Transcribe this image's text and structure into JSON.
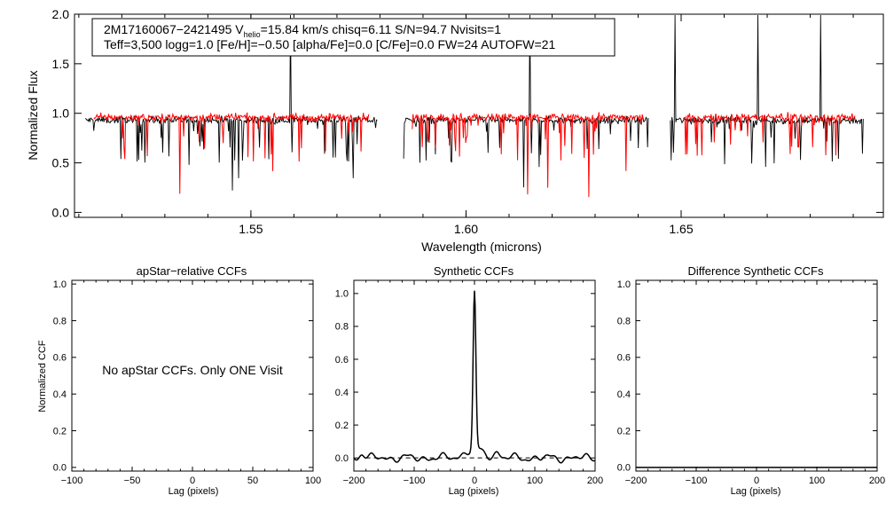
{
  "chart_data": [
    {
      "type": "line",
      "title": "",
      "xlabel": "Wavelength (microns)",
      "ylabel": "Normalized Flux",
      "xlim": [
        1.509,
        1.697
      ],
      "ylim": [
        -0.05,
        2.0
      ],
      "xticks": [
        1.55,
        1.6,
        1.65
      ],
      "xtick_labels": [
        "1.55",
        "1.60",
        "1.65"
      ],
      "yticks": [
        0.0,
        0.5,
        1.0,
        1.5,
        2.0
      ],
      "ytick_labels": [
        "0.0",
        "0.5",
        "1.0",
        "1.5",
        "2.0"
      ],
      "info": {
        "line1_prefix": "2M17160067−2421495  V",
        "line1_sub": "helio",
        "line1_suffix": "=15.84 km/s  chisq=6.11  S/N=94.7  Nvisits=1",
        "line2": "Teff=3,500 logg=1.0 [Fe/H]=−0.50 [alpha/Fe]=0.0 [C/Fe]=0.0 FW=24 AUTOFW=21"
      },
      "series": [
        {
          "name": "observed",
          "color": "#000000",
          "segments": [
            [
              1.5115,
              1.5795
            ],
            [
              1.5855,
              1.6425
            ],
            [
              1.6475,
              1.6925
            ]
          ],
          "continuum": 0.93
        },
        {
          "name": "model",
          "color": "#ff0000",
          "segments": [
            [
              1.5135,
              1.5775
            ],
            [
              1.5875,
              1.6415
            ],
            [
              1.6505,
              1.6905
            ]
          ],
          "continuum": 0.96
        }
      ]
    },
    {
      "type": "line",
      "title": "apStar−relative CCFs",
      "xlabel": "Lag (pixels)",
      "ylabel": "Normalized CCF",
      "xlim": [
        -100,
        100
      ],
      "ylim": [
        -0.02,
        1.02
      ],
      "xticks": [
        -100,
        -50,
        0,
        50,
        100
      ],
      "xtick_labels": [
        "−100",
        "−50",
        "0",
        "50",
        "100"
      ],
      "yticks": [
        0.0,
        0.2,
        0.4,
        0.6,
        0.8,
        1.0
      ],
      "ytick_labels": [
        "0.0",
        "0.2",
        "0.4",
        "0.6",
        "0.8",
        "1.0"
      ],
      "message": "No apStar CCFs.  Only ONE Visit",
      "series": []
    },
    {
      "type": "line",
      "title": "Synthetic CCFs",
      "xlabel": "Lag (pixels)",
      "ylabel": "",
      "xlim": [
        -200,
        200
      ],
      "ylim": [
        -0.08,
        1.08
      ],
      "xticks": [
        -200,
        -100,
        0,
        100,
        200
      ],
      "xtick_labels": [
        "−200",
        "−100",
        "0",
        "100",
        "200"
      ],
      "yticks": [
        0.0,
        0.2,
        0.4,
        0.6,
        0.8,
        1.0
      ],
      "ytick_labels": [
        "0.0",
        "0.2",
        "0.4",
        "0.6",
        "0.8",
        "1.0"
      ],
      "series": [
        {
          "name": "CCF",
          "color": "#000000",
          "peak_lag": 0,
          "peak_value": 1.0,
          "baseline": 0.0
        }
      ],
      "reference_line": {
        "y": 0.0,
        "style": "dashed"
      }
    },
    {
      "type": "line",
      "title": "Difference Synthetic CCFs",
      "xlabel": "Lag (pixels)",
      "ylabel": "",
      "xlim": [
        -200,
        200
      ],
      "ylim": [
        -0.02,
        1.02
      ],
      "xticks": [
        -200,
        -100,
        0,
        100,
        200
      ],
      "xtick_labels": [
        "−200",
        "−100",
        "0",
        "100",
        "200"
      ],
      "yticks": [
        0.0,
        0.2,
        0.4,
        0.6,
        0.8,
        1.0
      ],
      "ytick_labels": [
        "0.0",
        "0.2",
        "0.4",
        "0.6",
        "0.8",
        "1.0"
      ],
      "series": [
        {
          "name": "difference",
          "color": "#000000",
          "x": [
            -200,
            200
          ],
          "y": [
            0,
            0
          ]
        }
      ]
    }
  ]
}
